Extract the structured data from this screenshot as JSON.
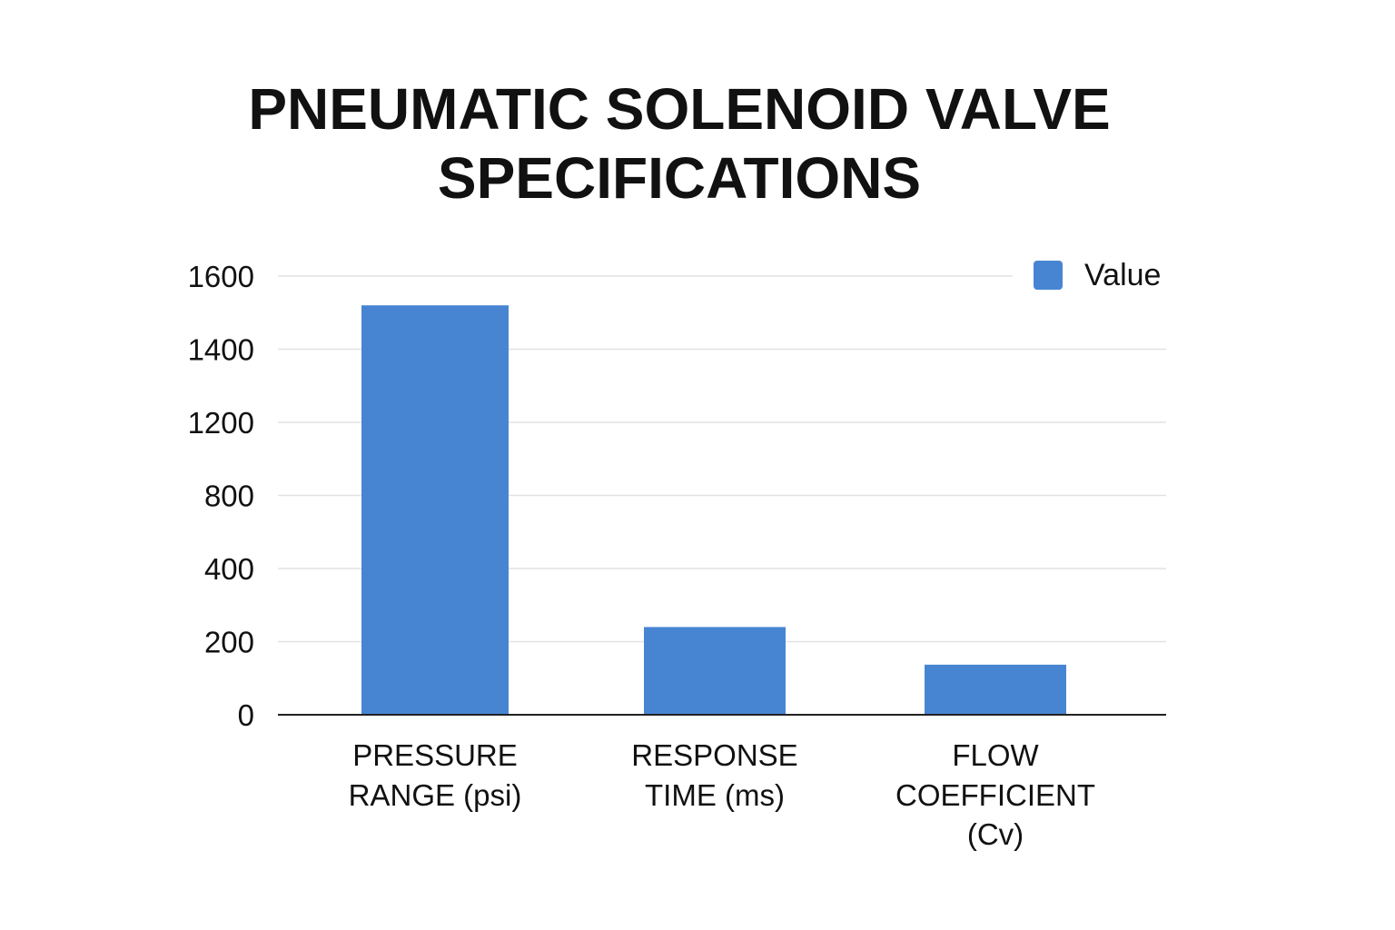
{
  "chart_data": {
    "type": "bar",
    "title_lines": [
      "PNEUMATIC SOLENOID VALVE",
      "SPECIFICATIONS"
    ],
    "categories": [
      [
        "PRESSURE",
        "RANGE (psi)"
      ],
      [
        "RESPONSE",
        "TIME (ms)"
      ],
      [
        "FLOW",
        "COEFFICIENT",
        "(Cv)"
      ]
    ],
    "series": [
      {
        "name": "Value",
        "values": [
          1520,
          240,
          137
        ],
        "color": "#4785d3"
      }
    ],
    "y_ticks": [
      0,
      200,
      400,
      800,
      1200,
      1400,
      1600
    ],
    "ylim": [
      0,
      1600
    ],
    "xlabel": "",
    "ylabel": "",
    "grid": true,
    "legend_position": "top-right"
  }
}
